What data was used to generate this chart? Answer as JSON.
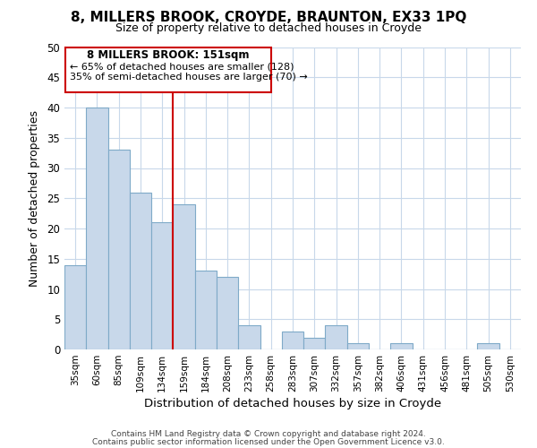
{
  "title": "8, MILLERS BROOK, CROYDE, BRAUNTON, EX33 1PQ",
  "subtitle": "Size of property relative to detached houses in Croyde",
  "xlabel": "Distribution of detached houses by size in Croyde",
  "ylabel": "Number of detached properties",
  "bar_labels": [
    "35sqm",
    "60sqm",
    "85sqm",
    "109sqm",
    "134sqm",
    "159sqm",
    "184sqm",
    "208sqm",
    "233sqm",
    "258sqm",
    "283sqm",
    "307sqm",
    "332sqm",
    "357sqm",
    "382sqm",
    "406sqm",
    "431sqm",
    "456sqm",
    "481sqm",
    "505sqm",
    "530sqm"
  ],
  "bar_values": [
    14,
    40,
    33,
    26,
    21,
    24,
    13,
    12,
    4,
    0,
    3,
    2,
    4,
    1,
    0,
    1,
    0,
    0,
    0,
    1,
    0
  ],
  "bar_color": "#c8d8ea",
  "bar_edge_color": "#7faac8",
  "ylim": [
    0,
    50
  ],
  "yticks": [
    0,
    5,
    10,
    15,
    20,
    25,
    30,
    35,
    40,
    45,
    50
  ],
  "vline_color": "#cc0000",
  "annotation_title": "8 MILLERS BROOK: 151sqm",
  "annotation_line1": "← 65% of detached houses are smaller (128)",
  "annotation_line2": "35% of semi-detached houses are larger (70) →",
  "annotation_box_color": "#ffffff",
  "annotation_box_edge": "#cc0000",
  "footer1": "Contains HM Land Registry data © Crown copyright and database right 2024.",
  "footer2": "Contains public sector information licensed under the Open Government Licence v3.0.",
  "background_color": "#ffffff",
  "grid_color": "#c8d8ea"
}
